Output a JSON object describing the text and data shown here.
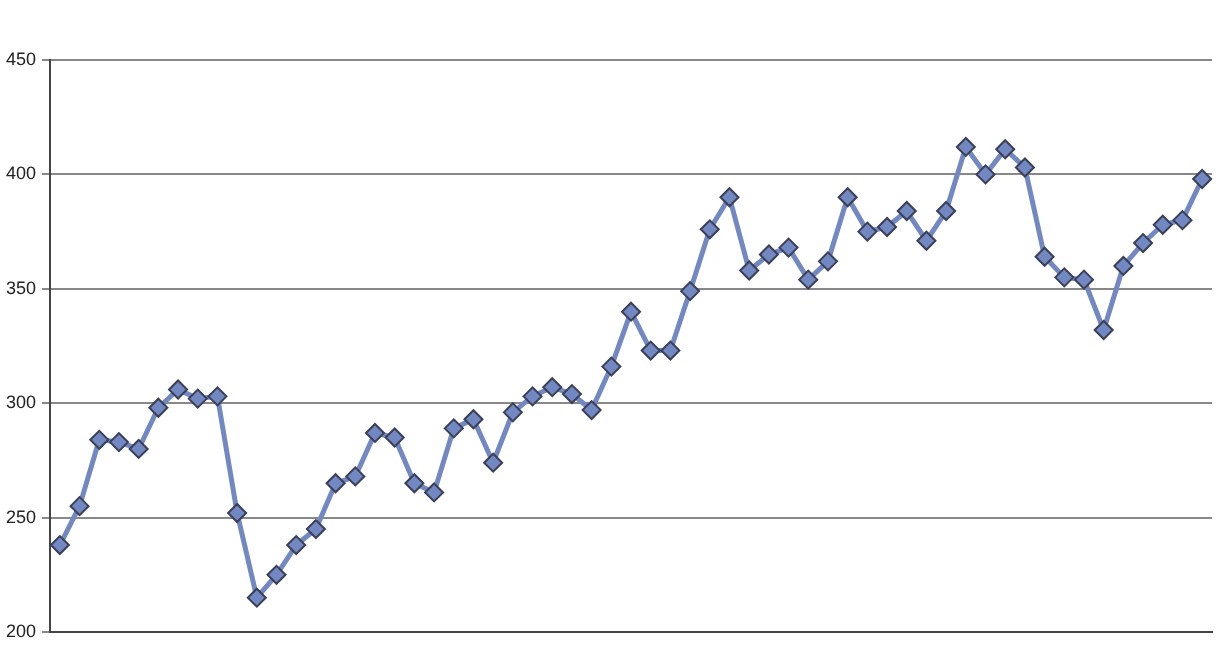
{
  "chart_data": {
    "type": "line",
    "categories": [
      null,
      null,
      null,
      null,
      null,
      null,
      null,
      null,
      null,
      null,
      null,
      null,
      null,
      null,
      null,
      null,
      null,
      null,
      null,
      null,
      null,
      null,
      null,
      null,
      null,
      null,
      null,
      null,
      null,
      null,
      null,
      null,
      null,
      null,
      null,
      null,
      null,
      null,
      null,
      null,
      null,
      null,
      null,
      null,
      null,
      null,
      null,
      null,
      null,
      null,
      null,
      null,
      null,
      null,
      null,
      null,
      null,
      null,
      null
    ],
    "series": [
      {
        "color": "#7288c2",
        "values": [
          238,
          255,
          284,
          283,
          280,
          298,
          306,
          302,
          303,
          252,
          215,
          225,
          238,
          245,
          265,
          268,
          287,
          285,
          265,
          261,
          289,
          293,
          274,
          296,
          303,
          307,
          304,
          297,
          316,
          340,
          323,
          323,
          349,
          376,
          390,
          358,
          365,
          368,
          354,
          362,
          390,
          375,
          377,
          384,
          371,
          384,
          412,
          400,
          411,
          403,
          364,
          355,
          354,
          332,
          360,
          370,
          378,
          380,
          398
        ]
      }
    ],
    "ylim": [
      200,
      450
    ],
    "yticks": [
      200,
      250,
      300,
      350,
      400,
      450
    ],
    "grid": "y",
    "legend": false,
    "marker": "diamond",
    "line_style": "solid",
    "tick_labels": "y"
  }
}
